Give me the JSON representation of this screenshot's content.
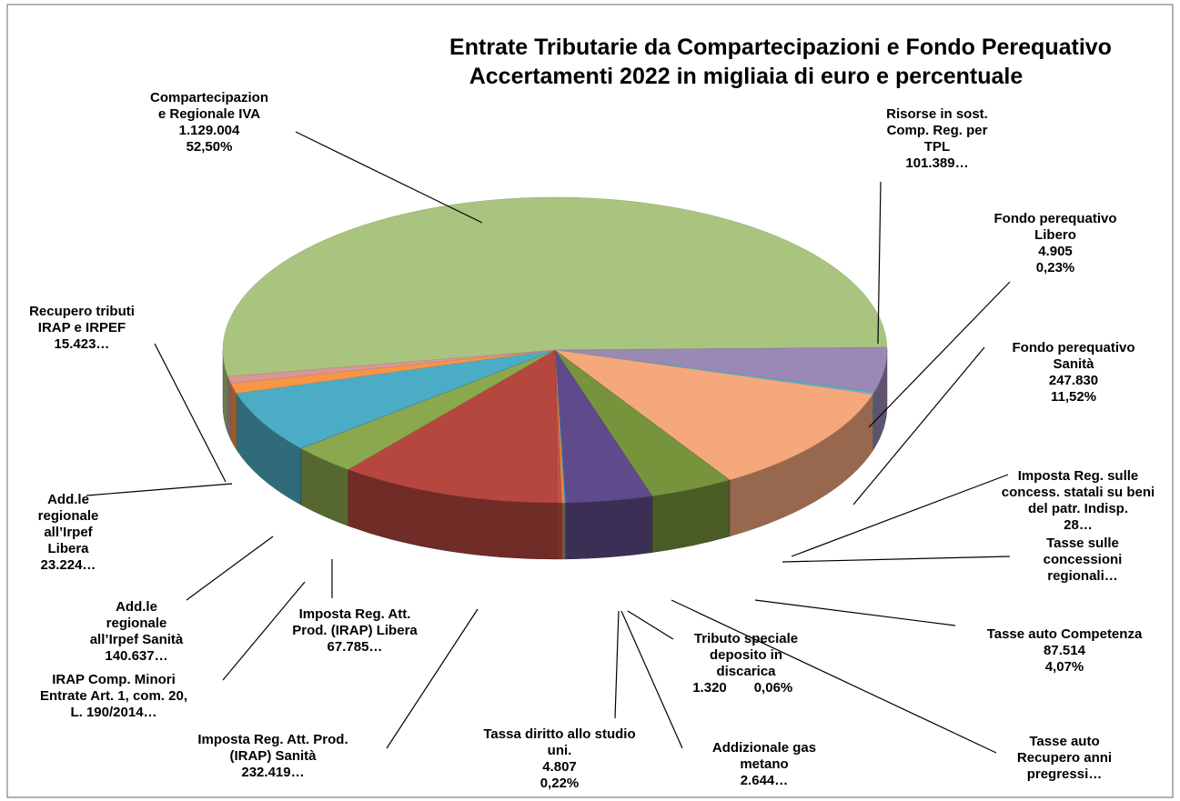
{
  "chart_data": {
    "type": "pie",
    "title": "Entrate Tributarie da Compartecipazioni e Fondo Perequativo",
    "subtitle": "Accertamenti 2022 in migliaia di euro e percentuale",
    "categories": [
      "Compartecipazion\ne Regionale IVA",
      "Risorse in sost.\nComp. Reg. per\nTPL",
      "Fondo perequativo\nLibero",
      "Fondo perequativo\nSanità",
      "Imposta Reg. sulle\nconcess. statali su beni\ndel patr. Indisp.",
      "Tasse sulle\nconcessioni\nregionali…",
      "Tasse auto Competenza",
      "Tasse auto\nRecupero anni\npregressi…",
      "Tributo speciale\ndeposito in\ndiscarica",
      "Addizionale gas\nmetano",
      "Tassa diritto allo studio\nuni.",
      "Imposta Reg. Att. Prod.\n(IRAP) Sanità",
      "Imposta Reg. Att.\nProd. (IRAP) Libera",
      "IRAP Comp. Minori\nEntrate Art. 1, com. 20,\nL. 190/2014…",
      "Add.le\nregionale\nall’Irpef Sanità",
      "Add.le\nregionale\nall’Irpef\nLibera",
      "Recupero tributi\nIRAP e IRPEF"
    ],
    "values": [
      1129004,
      101389,
      4905,
      247830,
      28,
      300,
      87514,
      90755,
      1320,
      2644,
      4807,
      232419,
      67785,
      500,
      140637,
      23224,
      15423
    ],
    "value_labels": [
      "1.129.004",
      "101.389…",
      "4.905",
      "247.830",
      "28…",
      null,
      "87.514",
      null,
      "1.320",
      "2.644…",
      "4.807",
      "232.419…",
      "67.785…",
      null,
      "140.637…",
      "23.224…",
      "15.423…"
    ],
    "percent_labels": [
      "52,50%",
      null,
      "0,23%",
      "11,52%",
      null,
      null,
      "4,07%",
      null,
      "0,06%",
      null,
      "0,22%",
      null,
      null,
      null,
      null,
      null,
      null
    ],
    "colors": [
      "#a9c47f",
      "#9a88b5",
      "#5ab4d0",
      "#f4a87c",
      "#b0413e",
      "#8aa85a",
      "#77933c",
      "#5f4b8b",
      "#4aa7c0",
      "#e88a3a",
      "#c0504d",
      "#b5473f",
      "#8aa84e",
      "#7b61a0",
      "#4bacc6",
      "#f79646",
      "#d99694"
    ]
  }
}
